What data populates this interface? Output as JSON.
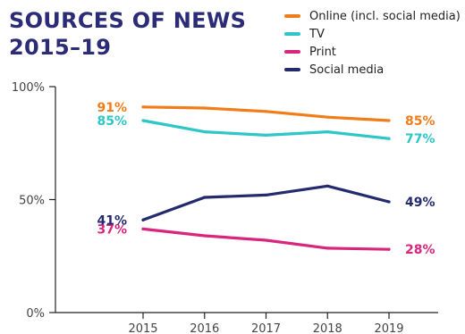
{
  "header": {
    "title_line1": "SOURCES OF NEWS",
    "title_line2": "2015–19"
  },
  "chart_data": {
    "type": "line",
    "title": "SOURCES OF NEWS 2015–19",
    "x": [
      "2015",
      "2016",
      "2017",
      "2018",
      "2019"
    ],
    "ylim": [
      0,
      100
    ],
    "yticks": [
      0,
      50,
      100
    ],
    "ytick_labels": [
      "0%",
      "50%",
      "100%"
    ],
    "grid": false,
    "legend_position": "top-right",
    "series": [
      {
        "name": "Online (incl. social media)",
        "color": "#f07d1a",
        "values": [
          91,
          90.5,
          89,
          86.5,
          85
        ],
        "start_label": "91%",
        "end_label": "85%"
      },
      {
        "name": "TV",
        "color": "#2ec6c6",
        "values": [
          85,
          80,
          78.5,
          80,
          77
        ],
        "start_label": "85%",
        "end_label": "77%"
      },
      {
        "name": "Print",
        "color": "#d9257d",
        "values": [
          37,
          34,
          32,
          28.5,
          28
        ],
        "start_label": "37%",
        "end_label": "28%"
      },
      {
        "name": "Social media",
        "color": "#232a6e",
        "values": [
          41,
          51,
          52,
          56,
          49
        ],
        "start_label": "41%",
        "end_label": "49%"
      }
    ]
  }
}
